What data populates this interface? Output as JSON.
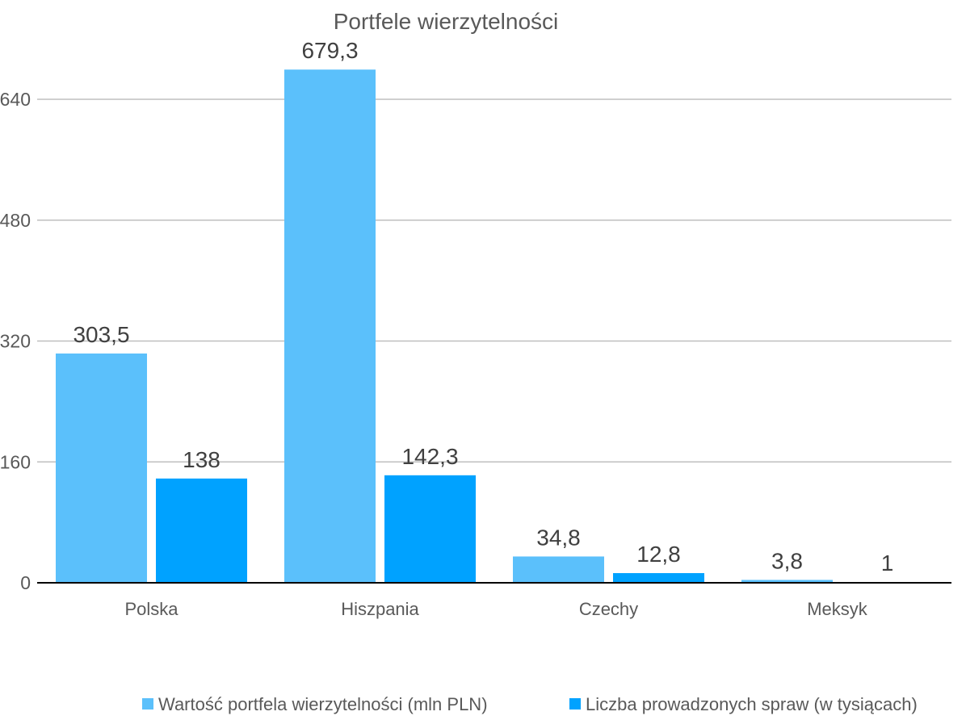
{
  "chart_data": {
    "type": "bar",
    "title": "Portfele wierzytelności",
    "xlabel": "",
    "ylabel": "",
    "categories": [
      "Polska",
      "Hiszpania",
      "Czechy",
      "Meksyk"
    ],
    "series": [
      {
        "name": "Wartość portfela wierzytelności (mln PLN)",
        "color": "#5bc0fb",
        "values": [
          303.5,
          679.3,
          34.8,
          3.8
        ],
        "labels": [
          "303,5",
          "679,3",
          "34,8",
          "3,8"
        ]
      },
      {
        "name": "Liczba prowadzonych spraw (w tysiącach)",
        "color": "#00a2ff",
        "values": [
          138,
          142.3,
          12.8,
          1
        ],
        "labels": [
          "138",
          "142,3",
          "12,8",
          "1"
        ]
      }
    ],
    "ylim": [
      0,
      640
    ],
    "yticks": [
      0,
      160,
      320,
      480,
      640
    ],
    "grid": true,
    "legend": "bottom"
  }
}
